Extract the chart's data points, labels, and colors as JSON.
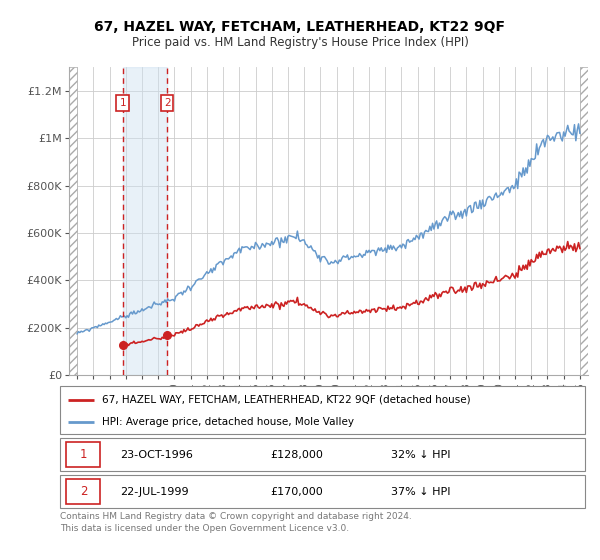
{
  "title": "67, HAZEL WAY, FETCHAM, LEATHERHEAD, KT22 9QF",
  "subtitle": "Price paid vs. HM Land Registry's House Price Index (HPI)",
  "legend_label_red": "67, HAZEL WAY, FETCHAM, LEATHERHEAD, KT22 9QF (detached house)",
  "legend_label_blue": "HPI: Average price, detached house, Mole Valley",
  "transaction1_date": "23-OCT-1996",
  "transaction1_price": 128000,
  "transaction1_note": "32% ↓ HPI",
  "transaction2_date": "22-JUL-1999",
  "transaction2_price": 170000,
  "transaction2_note": "37% ↓ HPI",
  "footnote": "Contains HM Land Registry data © Crown copyright and database right 2024.\nThis data is licensed under the Open Government Licence v3.0.",
  "red_color": "#cc2222",
  "blue_color": "#6699cc",
  "grid_color": "#cccccc",
  "xlim_start": 1993.5,
  "xlim_end": 2025.5,
  "ylim_bottom": 0,
  "ylim_top": 1300000,
  "t1_year": 1996.81,
  "t2_year": 1999.55,
  "t1_price": 128000,
  "t2_price": 170000
}
